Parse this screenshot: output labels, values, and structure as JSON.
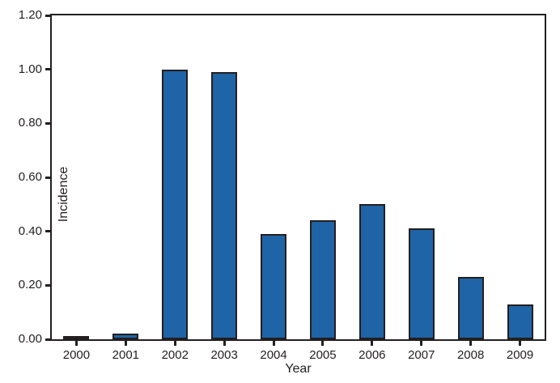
{
  "chart_data": {
    "type": "bar",
    "title": "",
    "xlabel": "Year",
    "ylabel": "Incidence",
    "categories": [
      "2000",
      "2001",
      "2002",
      "2003",
      "2004",
      "2005",
      "2006",
      "2007",
      "2008",
      "2009"
    ],
    "values": [
      0.01,
      0.02,
      1.0,
      0.99,
      0.39,
      0.44,
      0.5,
      0.41,
      0.23,
      0.13
    ],
    "ylim": [
      0,
      1.2
    ],
    "ytick_values": [
      0.0,
      0.2,
      0.4,
      0.6,
      0.8,
      1.0,
      1.2
    ],
    "ytick_labels": [
      "0.00",
      "0.20",
      "0.40",
      "0.60",
      "0.80",
      "1.00",
      "1.20"
    ],
    "grid": false,
    "legend": null,
    "frame": "full-box",
    "bar_color": "#1e64a6",
    "bar_edge_color": "#231f20",
    "axis_color": "#231f20"
  }
}
